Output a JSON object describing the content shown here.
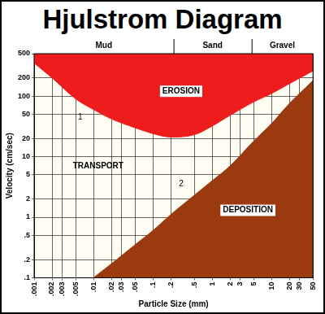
{
  "chart_data": {
    "type": "line",
    "title": "Hjulstrom Diagram",
    "x_label": "Particle Size (mm)",
    "y_label": "Velocity (cm/sec)",
    "size_classes": [
      "Mud",
      "Sand",
      "Gravel"
    ],
    "annotations": [
      "EROSION",
      "TRANSPORT",
      "DEPOSITION"
    ],
    "log": true,
    "grid": true,
    "x": [
      0.001,
      0.002,
      0.005,
      0.01,
      0.02,
      0.05,
      0.1,
      0.2,
      0.5,
      1,
      2,
      5,
      10,
      20,
      50
    ],
    "series": [
      {
        "name": "1",
        "color": "#ee1c1c",
        "values": [
          350,
          200,
          90,
          60,
          42,
          30,
          24,
          21,
          23,
          32,
          48,
          80,
          110,
          160,
          260
        ]
      },
      {
        "name": "2",
        "color": "#9a3a0e",
        "values": [
          null,
          null,
          null,
          0.1,
          0.17,
          0.35,
          0.6,
          1.1,
          2.3,
          4,
          7,
          18,
          35,
          75,
          180
        ]
      }
    ],
    "xlim": [
      0.001,
      50
    ],
    "xticks": [
      {
        "value": 0.001,
        "label": ".001"
      },
      {
        "value": 0.002,
        "label": ".002"
      },
      {
        "value": 0.003,
        "label": ".003"
      },
      {
        "value": 0.005,
        "label": ".005"
      },
      {
        "value": 0.01,
        "label": ".01"
      },
      {
        "value": 0.02,
        "label": ".02"
      },
      {
        "value": 0.03,
        "label": ".03"
      },
      {
        "value": 0.05,
        "label": ".05"
      },
      {
        "value": 0.1,
        "label": ".1"
      },
      {
        "value": 0.2,
        "label": ".2"
      },
      {
        "value": 0.5,
        "label": ".5"
      },
      1,
      2,
      3,
      5,
      10,
      20,
      30,
      50
    ],
    "ylim": [
      0.1,
      500
    ],
    "yticks": [
      {
        "value": 0.1,
        "label": ".1"
      },
      {
        "value": 0.2,
        "label": ".2"
      },
      {
        "value": 0.5,
        "label": ".5"
      },
      1,
      2,
      5,
      10,
      20,
      50,
      100,
      200,
      500
    ]
  }
}
